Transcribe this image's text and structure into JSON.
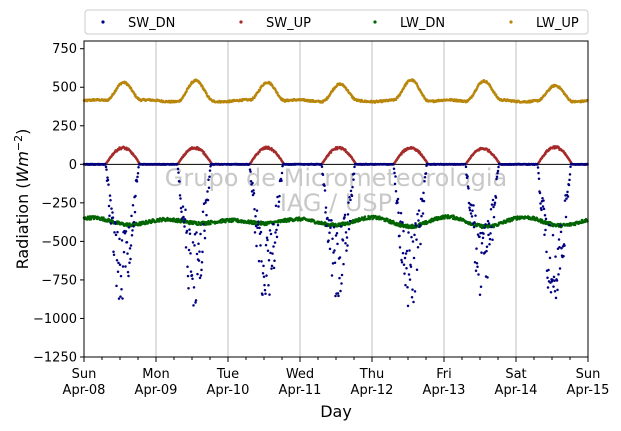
{
  "chart_data": {
    "type": "scatter",
    "title": "",
    "xlabel": "Day",
    "ylabel_main": "Radiation (",
    "ylabel_unit": "Wm",
    "ylabel_exp": "−2",
    "ylabel_close": ")",
    "ylim": [
      -1250,
      800
    ],
    "xlim_days": [
      0,
      7
    ],
    "yticks": [
      750,
      500,
      250,
      0,
      -250,
      -500,
      -750,
      -1000,
      -1250
    ],
    "ytick_labels": [
      "750",
      "500",
      "250",
      "0",
      "−250",
      "−500",
      "−750",
      "−1000",
      "−1250"
    ],
    "xticks": [
      {
        "day": 0,
        "line1": "Sun",
        "line2": "Apr-08"
      },
      {
        "day": 1,
        "line1": "Mon",
        "line2": "Apr-09"
      },
      {
        "day": 2,
        "line1": "Tue",
        "line2": "Apr-10"
      },
      {
        "day": 3,
        "line1": "Wed",
        "line2": "Apr-11"
      },
      {
        "day": 4,
        "line1": "Thu",
        "line2": "Apr-12"
      },
      {
        "day": 5,
        "line1": "Fri",
        "line2": "Apr-13"
      },
      {
        "day": 6,
        "line1": "Sat",
        "line2": "Apr-14"
      },
      {
        "day": 7,
        "line1": "Sun",
        "line2": "Apr-15"
      }
    ],
    "grid": "vertical",
    "legend_position": "top",
    "watermark_line1": "Grupo de Micrometeorologia",
    "watermark_line2": "IAG / USP",
    "series": [
      {
        "name": "SW_DN",
        "color": "#00007f",
        "peaks": [
          -880,
          -920,
          -880,
          -860,
          -920,
          -850,
          -940
        ],
        "points": [
          [
            0.0,
            -3
          ],
          [
            0.3,
            -4
          ],
          [
            0.5,
            -820
          ],
          [
            0.7,
            -3
          ],
          [
            1.0,
            -3
          ],
          [
            1.3,
            -3
          ],
          [
            1.55,
            -900
          ],
          [
            1.75,
            -3
          ],
          [
            2.0,
            -3
          ],
          [
            2.3,
            -3
          ],
          [
            2.55,
            -870
          ],
          [
            2.75,
            -3
          ],
          [
            3.0,
            -3
          ],
          [
            3.3,
            -3
          ],
          [
            3.55,
            -850
          ],
          [
            3.75,
            -3
          ],
          [
            4.0,
            -3
          ],
          [
            4.3,
            -3
          ],
          [
            4.5,
            -880
          ],
          [
            4.75,
            -3
          ],
          [
            5.0,
            -3
          ],
          [
            5.3,
            -3
          ],
          [
            5.5,
            -830
          ],
          [
            5.75,
            -3
          ],
          [
            6.0,
            -3
          ],
          [
            6.3,
            -3
          ],
          [
            6.5,
            -900
          ],
          [
            6.75,
            -3
          ],
          [
            7.0,
            -3
          ]
        ]
      },
      {
        "name": "SW_UP",
        "color": "#a52a2a",
        "peaks": [
          110,
          110,
          110,
          110,
          110,
          105,
          115
        ],
        "points": [
          [
            0.0,
            0
          ],
          [
            0.3,
            0
          ],
          [
            0.55,
            100
          ],
          [
            0.75,
            0
          ],
          [
            1.0,
            0
          ],
          [
            1.3,
            0
          ],
          [
            1.55,
            105
          ],
          [
            1.75,
            0
          ],
          [
            2.0,
            0
          ],
          [
            2.3,
            0
          ],
          [
            2.55,
            105
          ],
          [
            2.75,
            0
          ],
          [
            3.0,
            0
          ],
          [
            3.3,
            0
          ],
          [
            3.55,
            110
          ],
          [
            3.75,
            0
          ],
          [
            4.0,
            0
          ],
          [
            4.3,
            0
          ],
          [
            4.5,
            105
          ],
          [
            4.75,
            0
          ],
          [
            5.0,
            0
          ],
          [
            5.3,
            0
          ],
          [
            5.5,
            100
          ],
          [
            5.75,
            0
          ],
          [
            6.0,
            0
          ],
          [
            6.3,
            0
          ],
          [
            6.5,
            110
          ],
          [
            6.75,
            0
          ],
          [
            7.0,
            0
          ]
        ]
      },
      {
        "name": "LW_DN",
        "color": "#006400",
        "points": [
          [
            0.0,
            -350
          ],
          [
            0.25,
            -345
          ],
          [
            0.5,
            -395
          ],
          [
            0.75,
            -370
          ],
          [
            1.0,
            -385
          ],
          [
            1.25,
            -380
          ],
          [
            1.5,
            -400
          ],
          [
            1.75,
            -375
          ],
          [
            2.0,
            -395
          ],
          [
            2.25,
            -370
          ],
          [
            2.5,
            -355
          ],
          [
            2.75,
            -360
          ],
          [
            3.0,
            -380
          ],
          [
            3.25,
            -400
          ],
          [
            3.5,
            -375
          ],
          [
            3.75,
            -365
          ],
          [
            4.0,
            -340
          ],
          [
            4.25,
            -350
          ],
          [
            4.5,
            -400
          ],
          [
            4.75,
            -390
          ],
          [
            5.0,
            -370
          ],
          [
            5.25,
            -365
          ],
          [
            5.5,
            -410
          ],
          [
            5.75,
            -375
          ],
          [
            6.0,
            -360
          ],
          [
            6.25,
            -365
          ],
          [
            6.5,
            -360
          ],
          [
            6.75,
            -390
          ],
          [
            7.0,
            -395
          ]
        ]
      },
      {
        "name": "LW_UP",
        "color": "#b8860b",
        "peaks": [
          540,
          540,
          540,
          520,
          550,
          545,
          510
        ],
        "points": [
          [
            0.0,
            415
          ],
          [
            0.2,
            410
          ],
          [
            0.4,
            420
          ],
          [
            0.55,
            540
          ],
          [
            0.75,
            420
          ],
          [
            1.0,
            410
          ],
          [
            1.3,
            415
          ],
          [
            1.6,
            540
          ],
          [
            1.8,
            420
          ],
          [
            2.0,
            405
          ],
          [
            2.3,
            410
          ],
          [
            2.6,
            540
          ],
          [
            2.8,
            420
          ],
          [
            3.0,
            415
          ],
          [
            3.3,
            420
          ],
          [
            3.55,
            520
          ],
          [
            3.75,
            420
          ],
          [
            4.0,
            405
          ],
          [
            4.3,
            420
          ],
          [
            4.55,
            550
          ],
          [
            4.75,
            430
          ],
          [
            5.0,
            420
          ],
          [
            5.3,
            420
          ],
          [
            5.5,
            545
          ],
          [
            5.75,
            420
          ],
          [
            6.0,
            415
          ],
          [
            6.3,
            420
          ],
          [
            6.5,
            510
          ],
          [
            6.75,
            430
          ],
          [
            7.0,
            415
          ]
        ]
      }
    ]
  }
}
